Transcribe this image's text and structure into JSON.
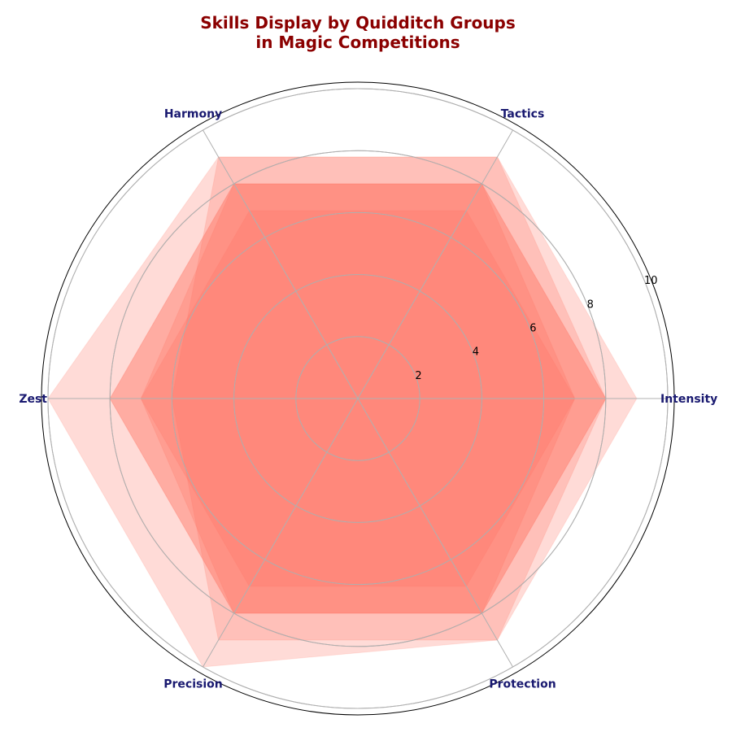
{
  "chart_data": {
    "type": "radar",
    "title_line1": "Skills Display by Quidditch Groups",
    "title_line2": "in Magic Competitions",
    "categories": [
      "Intensity",
      "Tactics",
      "Harmony",
      "Zest",
      "Precision",
      "Protection"
    ],
    "radial_ticks": [
      2,
      4,
      6,
      8,
      10
    ],
    "rlim": [
      0,
      10
    ],
    "grid": true,
    "series": [
      {
        "values": [
          8,
          8,
          8,
          8,
          8,
          8
        ]
      },
      {
        "values": [
          9,
          9,
          9,
          10,
          10,
          9
        ]
      },
      {
        "values": [
          7,
          7,
          7,
          7,
          7,
          7
        ]
      },
      {
        "values": [
          8,
          9,
          9,
          6,
          9,
          9
        ]
      },
      {
        "values": [
          8,
          8,
          8,
          8,
          8,
          8
        ]
      },
      {
        "values": [
          7,
          8,
          8,
          7,
          8,
          8
        ]
      }
    ],
    "colors": {
      "fill": "#ff6f61",
      "title": "#8b0000",
      "axis_label": "#191970",
      "grid": "#b0b0b0",
      "frame": "#000000"
    }
  }
}
